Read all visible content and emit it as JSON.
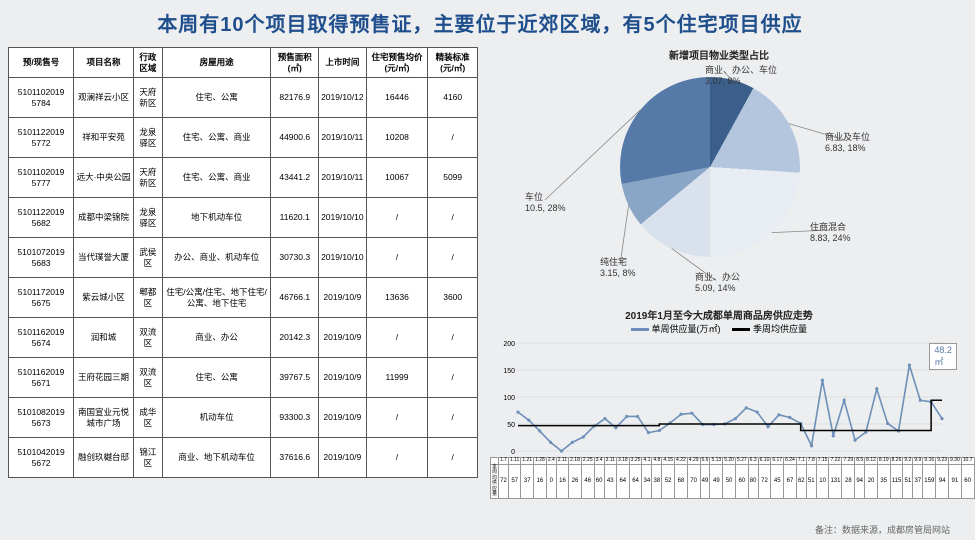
{
  "title": "本周有10个项目取得预售证，主要位于近郊区域，有5个住宅项目供应",
  "footnote": "备注：数据来源，成都房管局网站",
  "table": {
    "columns": [
      "预/现售号",
      "项目名称",
      "行政区域",
      "房屋用途",
      "预售面积 (㎡)",
      "上市时间",
      "住宅预售均价 (元/㎡)",
      "精装标准 (元/㎡)"
    ],
    "rows": [
      [
        "5101102019 5784",
        "观澜祥云小区",
        "天府新区",
        "住宅、公寓",
        "82176.9",
        "2019/10/12",
        "16446",
        "4160"
      ],
      [
        "5101122019 5772",
        "祥和平安苑",
        "龙泉驿区",
        "住宅、公寓、商业",
        "44900.6",
        "2019/10/11",
        "10208",
        "/"
      ],
      [
        "5101102019 5777",
        "远大·中央公园",
        "天府新区",
        "住宅、公寓、商业",
        "43441.2",
        "2019/10/11",
        "10067",
        "5099"
      ],
      [
        "5101122019 5682",
        "成都中梁锦院",
        "龙泉驿区",
        "地下机动车位",
        "11620.1",
        "2019/10/10",
        "/",
        "/"
      ],
      [
        "5101072019 5683",
        "当代璞誉大厦",
        "武侯区",
        "办公、商业、机动车位",
        "30730.3",
        "2019/10/10",
        "/",
        "/"
      ],
      [
        "5101172019 5675",
        "紫云城小区",
        "郫都区",
        "住宅/公寓/住宅、地下住宅/公寓、地下住宅",
        "46766.1",
        "2019/10/9",
        "13636",
        "3600"
      ],
      [
        "5101162019 5674",
        "润和城",
        "双流区",
        "商业、办公",
        "20142.3",
        "2019/10/9",
        "/",
        "/"
      ],
      [
        "5101162019 5671",
        "王府花园三期",
        "双流区",
        "住宅、公寓",
        "39767.5",
        "2019/10/9",
        "11999",
        "/"
      ],
      [
        "5101082019 5673",
        "南国宣业元悦城市广场",
        "成华区",
        "机动车位",
        "93300.3",
        "2019/10/9",
        "/",
        "/"
      ],
      [
        "5101042019 5672",
        "融创玖樾台邸",
        "锦江区",
        "商业、地下机动车位",
        "37616.6",
        "2019/10/9",
        "/",
        "/"
      ]
    ]
  },
  "pie": {
    "title": "新增项目物业类型占比",
    "slices": [
      {
        "label": "商业、办公、车位",
        "sub": "3.07, 8%",
        "value": 8,
        "color": "#3b5f8a"
      },
      {
        "label": "商业及车位",
        "sub": "6.83, 18%",
        "value": 18,
        "color": "#b3c6de"
      },
      {
        "label": "住商混合",
        "sub": "8.83, 24%",
        "value": 24,
        "color": "#e8edf3"
      },
      {
        "label": "商业、办公",
        "sub": "5.09, 14%",
        "value": 14,
        "color": "#d9e2ec"
      },
      {
        "label": "纯住宅",
        "sub": "3.15, 8%",
        "value": 8,
        "color": "#8aa6c7"
      },
      {
        "label": "车位",
        "sub": "10.5, 28%",
        "value": 28,
        "color": "#557aa8"
      }
    ]
  },
  "line": {
    "title": "2019年1月至今大成都单周商品房供应走势",
    "legend": [
      {
        "name": "单周供应量(万㎡)",
        "color": "#6d8fb8",
        "type": "line"
      },
      {
        "name": "季周均供应量",
        "color": "#000000",
        "type": "step"
      }
    ],
    "y": {
      "min": 0,
      "max": 200,
      "step": 50
    },
    "x_labels": [
      "1.7",
      "1.11",
      "1.21",
      "1.28",
      "2.4",
      "2.11",
      "2.18",
      "2.25",
      "3.4",
      "3.11",
      "3.18",
      "3.25",
      "4.1",
      "4.8",
      "4.15",
      "4.22",
      "4.29",
      "5.6",
      "5.13",
      "5.20",
      "5.27",
      "6.3",
      "6.10",
      "6.17",
      "6.24",
      "7.1",
      "7.8",
      "7.15",
      "7.22",
      "7.29",
      "8.5",
      "8.12",
      "8.19",
      "8.26",
      "9.2",
      "9.9",
      "9.16",
      "9.23",
      "9.30",
      "10.7"
    ],
    "values": [
      72,
      57,
      37,
      16,
      0,
      16,
      26,
      46,
      60,
      43,
      64,
      64,
      34,
      38,
      52,
      68,
      70,
      49,
      49,
      50,
      60,
      80,
      72,
      45,
      67,
      62,
      51,
      10,
      131,
      28,
      94,
      20,
      35,
      115,
      51,
      37,
      159,
      94,
      91,
      60
    ],
    "season_avg": [
      47,
      47,
      47,
      47,
      47,
      47,
      47,
      47,
      47,
      47,
      47,
      47,
      47,
      50,
      50,
      50,
      50,
      50,
      50,
      50,
      50,
      50,
      50,
      50,
      50,
      50,
      38,
      38,
      38,
      38,
      38,
      38,
      38,
      38,
      38,
      38,
      38,
      38,
      94,
      94
    ],
    "callout": {
      "text": "48.2㎡",
      "x_index": 36
    }
  }
}
